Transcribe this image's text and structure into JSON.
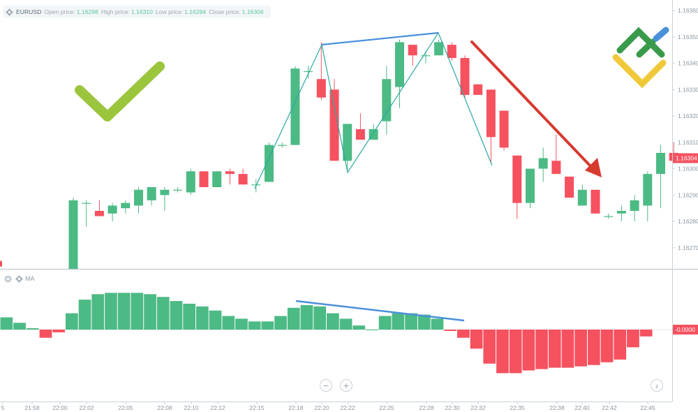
{
  "info_bar": {
    "symbol": "EURUSD",
    "open_label": "Open price:",
    "open_value": "1.16298",
    "high_label": "High price:",
    "high_value": "1.16310",
    "low_label": "Low price:",
    "low_value": "1.16284",
    "close_label": "Close price:",
    "close_value": "1.16306"
  },
  "oscillator": {
    "label": "MA"
  },
  "icons": {
    "settings": "gear-icon",
    "close": "close-icon",
    "zoom_out": "minus-icon",
    "zoom_in": "plus-icon",
    "scroll": "chevron-right-icon",
    "logo": "brand-logo"
  },
  "colors": {
    "bull": "#4cba84",
    "bear": "#f5515f",
    "trendline": "#4a90d9",
    "zigzag": "#2aa9a0",
    "arrow": "#d63a2f",
    "check": "#9bc53d",
    "price_tag": "#f5515f"
  },
  "chart_data": {
    "type": "candlestick",
    "symbol": "EURUSD",
    "price_axis": {
      "ticks": [
        "1.16360",
        "1.16350",
        "1.16340",
        "1.16330",
        "1.16320",
        "1.16310",
        "1.16300",
        "1.16290",
        "1.16280",
        "1.16270"
      ],
      "current_price_label": "1.16304",
      "range": [
        1.16262,
        1.16364
      ]
    },
    "time_axis": {
      "ticks": [
        "5",
        "21:58",
        "22:00",
        "22:02",
        "22:05",
        "22:08",
        "22:10",
        "22:12",
        "22:15",
        "22:18",
        "22:20",
        "22:22",
        "22:25",
        "22:28",
        "22:30",
        "22:32",
        "22:35",
        "22:38",
        "22:40",
        "22:42",
        "22:45"
      ]
    },
    "candles": [
      {
        "o": 1.16262,
        "h": 1.16289,
        "l": 1.16262,
        "c": 1.16288
      },
      {
        "o": 1.16287,
        "h": 1.16288,
        "l": 1.16278,
        "c": 1.16287
      },
      {
        "o": 1.16284,
        "h": 1.16288,
        "l": 1.16282,
        "c": 1.16282
      },
      {
        "o": 1.16283,
        "h": 1.16287,
        "l": 1.1628,
        "c": 1.16286
      },
      {
        "o": 1.16285,
        "h": 1.16288,
        "l": 1.16283,
        "c": 1.16287
      },
      {
        "o": 1.16286,
        "h": 1.16293,
        "l": 1.16283,
        "c": 1.16292
      },
      {
        "o": 1.16288,
        "h": 1.16293,
        "l": 1.16286,
        "c": 1.16293
      },
      {
        "o": 1.1629,
        "h": 1.16293,
        "l": 1.16284,
        "c": 1.16292
      },
      {
        "o": 1.16292,
        "h": 1.16293,
        "l": 1.16291,
        "c": 1.16292
      },
      {
        "o": 1.16291,
        "h": 1.163,
        "l": 1.1629,
        "c": 1.16299
      },
      {
        "o": 1.16299,
        "h": 1.16299,
        "l": 1.16293,
        "c": 1.16293
      },
      {
        "o": 1.16293,
        "h": 1.16299,
        "l": 1.16293,
        "c": 1.16299
      },
      {
        "o": 1.16299,
        "h": 1.163,
        "l": 1.16294,
        "c": 1.16298
      },
      {
        "o": 1.16298,
        "h": 1.163,
        "l": 1.16294,
        "c": 1.16294
      },
      {
        "o": 1.16294,
        "h": 1.16296,
        "l": 1.16291,
        "c": 1.16294
      },
      {
        "o": 1.16295,
        "h": 1.1631,
        "l": 1.16295,
        "c": 1.16309
      },
      {
        "o": 1.16309,
        "h": 1.1631,
        "l": 1.16308,
        "c": 1.16309
      },
      {
        "o": 1.16309,
        "h": 1.16339,
        "l": 1.16309,
        "c": 1.16338
      },
      {
        "o": 1.16337,
        "h": 1.16339,
        "l": 1.16334,
        "c": 1.16337
      },
      {
        "o": 1.16334,
        "h": 1.16348,
        "l": 1.16326,
        "c": 1.16327
      },
      {
        "o": 1.1633,
        "h": 1.16334,
        "l": 1.16303,
        "c": 1.16303
      },
      {
        "o": 1.16303,
        "h": 1.16317,
        "l": 1.16299,
        "c": 1.16317
      },
      {
        "o": 1.16315,
        "h": 1.16321,
        "l": 1.16311,
        "c": 1.16311
      },
      {
        "o": 1.16311,
        "h": 1.16317,
        "l": 1.16311,
        "c": 1.16315
      },
      {
        "o": 1.16318,
        "h": 1.16339,
        "l": 1.16313,
        "c": 1.16334
      },
      {
        "o": 1.16331,
        "h": 1.16349,
        "l": 1.16323,
        "c": 1.16348
      },
      {
        "o": 1.16347,
        "h": 1.16347,
        "l": 1.16339,
        "c": 1.16343
      },
      {
        "o": 1.16343,
        "h": 1.16344,
        "l": 1.1634,
        "c": 1.16343
      },
      {
        "o": 1.16343,
        "h": 1.16349,
        "l": 1.16343,
        "c": 1.16348
      },
      {
        "o": 1.16347,
        "h": 1.16348,
        "l": 1.16341,
        "c": 1.16342
      },
      {
        "o": 1.16342,
        "h": 1.16343,
        "l": 1.16327,
        "c": 1.16328
      },
      {
        "o": 1.16332,
        "h": 1.16332,
        "l": 1.16328,
        "c": 1.16328
      },
      {
        "o": 1.1633,
        "h": 1.1633,
        "l": 1.16302,
        "c": 1.16312
      },
      {
        "o": 1.16322,
        "h": 1.16322,
        "l": 1.16307,
        "c": 1.16308
      },
      {
        "o": 1.16305,
        "h": 1.16305,
        "l": 1.16281,
        "c": 1.16287
      },
      {
        "o": 1.16287,
        "h": 1.163,
        "l": 1.16285,
        "c": 1.163
      },
      {
        "o": 1.163,
        "h": 1.16308,
        "l": 1.16295,
        "c": 1.16304
      },
      {
        "o": 1.16303,
        "h": 1.16313,
        "l": 1.16298,
        "c": 1.16298
      },
      {
        "o": 1.16297,
        "h": 1.16297,
        "l": 1.16289,
        "c": 1.16289
      },
      {
        "o": 1.16286,
        "h": 1.16294,
        "l": 1.16286,
        "c": 1.16292
      },
      {
        "o": 1.16292,
        "h": 1.16292,
        "l": 1.16283,
        "c": 1.16283
      },
      {
        "o": 1.16282,
        "h": 1.16283,
        "l": 1.16281,
        "c": 1.16282
      },
      {
        "o": 1.16283,
        "h": 1.16286,
        "l": 1.1628,
        "c": 1.16284
      },
      {
        "o": 1.16284,
        "h": 1.1629,
        "l": 1.1628,
        "c": 1.16288
      },
      {
        "o": 1.16286,
        "h": 1.16299,
        "l": 1.1628,
        "c": 1.16298
      },
      {
        "o": 1.16298,
        "h": 1.16309,
        "l": 1.16285,
        "c": 1.16306
      },
      {
        "o": 1.16306,
        "h": 1.1631,
        "l": 1.16302,
        "c": 1.16303
      }
    ],
    "oscillator": {
      "name": "MA",
      "zero_label": "-0.0000",
      "values": [
        9,
        5,
        1,
        -6,
        -2,
        12,
        22,
        26,
        27,
        27,
        27,
        26,
        24,
        21,
        19,
        17,
        14,
        10,
        8,
        6,
        6,
        10,
        16,
        18,
        17,
        12,
        8,
        3,
        0,
        10,
        12,
        12,
        11,
        8,
        -1,
        -6,
        -14,
        -25,
        -32,
        -32,
        -30,
        -29,
        -28,
        -28,
        -27,
        -26,
        -24,
        -22,
        -13,
        -5
      ]
    }
  }
}
